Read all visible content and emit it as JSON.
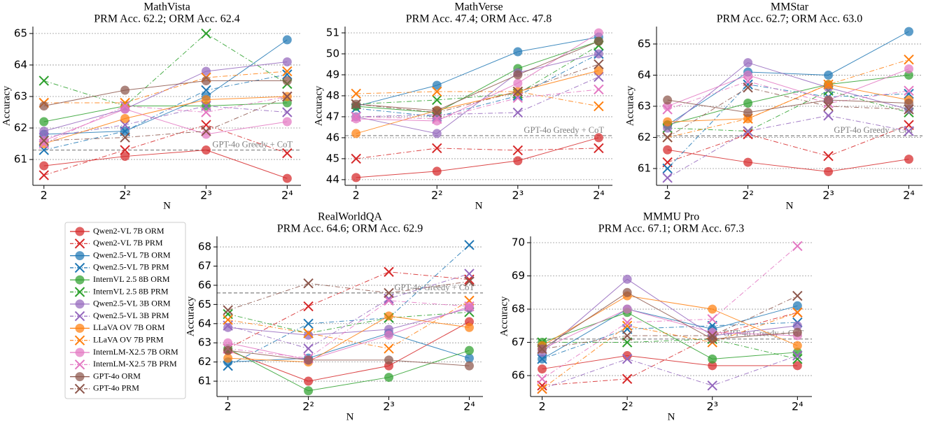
{
  "legend": [
    {
      "name": "Qwen2-VL 7B ORM",
      "color": "#d62728",
      "marker": "o",
      "linestyle": "solid"
    },
    {
      "name": "Qwen2-VL 7B PRM",
      "color": "#d62728",
      "marker": "x",
      "linestyle": "dashdot"
    },
    {
      "name": "Qwen2.5-VL 7B ORM",
      "color": "#1f77b4",
      "marker": "o",
      "linestyle": "solid"
    },
    {
      "name": "Qwen2.5-VL 7B PRM",
      "color": "#1f77b4",
      "marker": "x",
      "linestyle": "dashdot"
    },
    {
      "name": "InternVL 2.5 8B ORM",
      "color": "#2ca02c",
      "marker": "o",
      "linestyle": "solid"
    },
    {
      "name": "InternVL 2.5 8B PRM",
      "color": "#2ca02c",
      "marker": "x",
      "linestyle": "dashdot"
    },
    {
      "name": "Qwen2.5-VL 3B ORM",
      "color": "#9467bd",
      "marker": "o",
      "linestyle": "solid"
    },
    {
      "name": "Qwen2.5-VL 3B PRM",
      "color": "#9467bd",
      "marker": "x",
      "linestyle": "dashdot"
    },
    {
      "name": "LLaVA OV 7B ORM",
      "color": "#ff7f0e",
      "marker": "o",
      "linestyle": "solid"
    },
    {
      "name": "LLaVA OV 7B PRM",
      "color": "#ff7f0e",
      "marker": "x",
      "linestyle": "dashdot"
    },
    {
      "name": "InternLM-X2.5 7B ORM",
      "color": "#e377c2",
      "marker": "o",
      "linestyle": "solid"
    },
    {
      "name": "InternLM-X2.5 7B PRM",
      "color": "#e377c2",
      "marker": "x",
      "linestyle": "dashdot"
    },
    {
      "name": "GPT-4o ORM",
      "color": "#8c564b",
      "marker": "o",
      "linestyle": "solid"
    },
    {
      "name": "GPT-4o PRM",
      "color": "#8c564b",
      "marker": "x",
      "linestyle": "dashdot"
    }
  ],
  "chart_data": [
    {
      "type": "line",
      "title": "MathVista",
      "subtitle": "PRM Acc. 62.2; ORM Acc. 62.4",
      "xlabel": "N",
      "ylabel": "Accuracy",
      "x": [
        2,
        4,
        8,
        16
      ],
      "xscale": "log2",
      "xlim": [
        1.82,
        18
      ],
      "xticks": [
        2,
        {
          "value": 4,
          "label": "2²"
        },
        {
          "value": 8,
          "label": "2³"
        },
        {
          "value": 16,
          "label": "2⁴"
        }
      ],
      "ylim": [
        60.18,
        65.22
      ],
      "yticks": [
        61,
        62,
        63,
        64,
        65
      ],
      "grid": true,
      "reference": {
        "value": 61.3,
        "label": "GPT-4o Greedy + CoT"
      },
      "series": [
        {
          "values": [
            60.8,
            61.1,
            61.3,
            60.4
          ]
        },
        {
          "values": [
            60.5,
            61.3,
            62.1,
            61.2
          ]
        },
        {
          "values": [
            61.8,
            61.9,
            63.0,
            64.8
          ]
        },
        {
          "values": [
            61.3,
            61.9,
            63.2,
            63.7
          ]
        },
        {
          "values": [
            62.2,
            62.7,
            62.7,
            62.8
          ]
        },
        {
          "values": [
            63.5,
            62.7,
            65.0,
            63.4
          ]
        },
        {
          "values": [
            61.9,
            62.6,
            63.8,
            64.1
          ]
        },
        {
          "values": [
            61.7,
            62.1,
            62.7,
            62.5
          ]
        },
        {
          "values": [
            61.5,
            62.3,
            62.9,
            63.0
          ]
        },
        {
          "values": [
            62.8,
            62.8,
            63.6,
            63.8
          ]
        },
        {
          "values": [
            61.6,
            62.6,
            61.8,
            62.2
          ]
        },
        {
          "values": [
            61.5,
            62.7,
            62.5,
            63.0
          ]
        },
        {
          "values": [
            62.7,
            63.2,
            63.5,
            63.5
          ]
        },
        {
          "values": [
            61.6,
            61.7,
            61.9,
            63.0
          ]
        }
      ]
    },
    {
      "type": "line",
      "title": "MathVerse",
      "subtitle": "PRM Acc. 47.4; ORM Acc. 47.8",
      "xlabel": "N",
      "ylabel": "Accuracy",
      "x": [
        2,
        4,
        8,
        16
      ],
      "xscale": "log2",
      "xlim": [
        1.82,
        18
      ],
      "xticks": [
        2,
        {
          "value": 4,
          "label": "2²"
        },
        {
          "value": 8,
          "label": "2³"
        },
        {
          "value": 16,
          "label": "2⁴"
        }
      ],
      "ylim": [
        43.73,
        51.3
      ],
      "yticks": [
        44,
        45,
        46,
        47,
        48,
        49,
        50,
        51
      ],
      "grid": true,
      "reference": {
        "value": 46.1,
        "label": "GPT-4o Greedy + CoT"
      },
      "series": [
        {
          "values": [
            44.1,
            44.4,
            44.9,
            46.0
          ]
        },
        {
          "values": [
            45.0,
            45.5,
            45.4,
            45.5
          ]
        },
        {
          "values": [
            47.5,
            48.5,
            50.1,
            50.8
          ]
        },
        {
          "values": [
            47.4,
            47.0,
            48.0,
            50.0
          ]
        },
        {
          "values": [
            47.5,
            47.2,
            49.3,
            50.6
          ]
        },
        {
          "values": [
            47.6,
            47.8,
            48.1,
            50.4
          ]
        },
        {
          "values": [
            47.0,
            46.2,
            49.1,
            50.0
          ]
        },
        {
          "values": [
            47.0,
            47.1,
            47.2,
            48.9
          ]
        },
        {
          "values": [
            46.2,
            47.3,
            48.2,
            49.2
          ]
        },
        {
          "values": [
            48.1,
            48.2,
            48.2,
            47.5
          ]
        },
        {
          "values": [
            46.9,
            46.8,
            48.6,
            51.0
          ]
        },
        {
          "values": [
            47.0,
            46.9,
            47.9,
            48.3
          ]
        },
        {
          "values": [
            47.6,
            47.3,
            49.0,
            50.6
          ]
        },
        {
          "values": [
            47.6,
            47.2,
            48.2,
            49.5
          ]
        }
      ]
    },
    {
      "type": "line",
      "title": "MMStar",
      "subtitle": "PRM Acc. 62.7; ORM Acc. 63.0",
      "xlabel": "N",
      "ylabel": "Accuracy",
      "x": [
        2,
        4,
        8,
        16
      ],
      "xscale": "log2",
      "xlim": [
        1.82,
        18
      ],
      "xticks": [
        2,
        {
          "value": 4,
          "label": "2²"
        },
        {
          "value": 8,
          "label": "2³"
        },
        {
          "value": 16,
          "label": "2⁴"
        }
      ],
      "ylim": [
        60.46,
        65.56
      ],
      "yticks": [
        61,
        62,
        63,
        64,
        65
      ],
      "grid": true,
      "reference": {
        "value": 62.05,
        "label": "GPT-4o Greedy + CoT"
      },
      "series": [
        {
          "values": [
            61.6,
            61.2,
            60.9,
            61.3
          ]
        },
        {
          "values": [
            61.2,
            62.1,
            61.4,
            62.4
          ]
        },
        {
          "values": [
            62.4,
            64.1,
            64.0,
            65.4
          ]
        },
        {
          "values": [
            61.0,
            63.7,
            63.3,
            63.4
          ]
        },
        {
          "values": [
            62.4,
            63.1,
            63.7,
            64.0
          ]
        },
        {
          "values": [
            62.3,
            62.2,
            63.5,
            62.8
          ]
        },
        {
          "values": [
            62.3,
            64.4,
            63.6,
            62.9
          ]
        },
        {
          "values": [
            60.7,
            62.2,
            62.7,
            62.2
          ]
        },
        {
          "values": [
            62.5,
            62.6,
            63.7,
            63.2
          ]
        },
        {
          "values": [
            62.0,
            62.6,
            63.7,
            64.5
          ]
        },
        {
          "values": [
            63.0,
            64.0,
            63.2,
            64.2
          ]
        },
        {
          "values": [
            62.9,
            63.8,
            63.1,
            63.5
          ]
        },
        {
          "values": [
            63.2,
            62.8,
            63.2,
            63.1
          ]
        },
        {
          "values": [
            62.0,
            63.6,
            63.0,
            62.9
          ]
        }
      ]
    },
    {
      "type": "line",
      "title": "RealWorldQA",
      "subtitle": "PRM Acc. 64.6; ORM Acc. 62.9",
      "xlabel": "N",
      "ylabel": "Accuracy",
      "x": [
        2,
        4,
        8,
        16
      ],
      "xscale": "log2",
      "xlim": [
        1.82,
        18
      ],
      "xticks": [
        2,
        {
          "value": 4,
          "label": "2²"
        },
        {
          "value": 8,
          "label": "2³"
        },
        {
          "value": 16,
          "label": "2⁴"
        }
      ],
      "ylim": [
        60.2,
        68.55
      ],
      "yticks": [
        61,
        62,
        63,
        64,
        65,
        66,
        67,
        68
      ],
      "grid": true,
      "reference": {
        "value": 65.6,
        "label": "GPT-4o Greedy + CoT"
      },
      "series": [
        {
          "values": [
            62.6,
            61.0,
            61.8,
            64.1
          ]
        },
        {
          "values": [
            62.7,
            64.9,
            66.7,
            66.3
          ]
        },
        {
          "values": [
            62.0,
            62.2,
            63.5,
            62.2
          ]
        },
        {
          "values": [
            61.8,
            64.0,
            64.3,
            68.1
          ]
        },
        {
          "values": [
            62.7,
            60.5,
            61.2,
            62.6
          ]
        },
        {
          "values": [
            64.5,
            63.5,
            64.3,
            64.6
          ]
        },
        {
          "values": [
            63.8,
            63.4,
            63.7,
            64.8
          ]
        },
        {
          "values": [
            63.9,
            62.7,
            65.3,
            66.6
          ]
        },
        {
          "values": [
            62.2,
            62.0,
            64.4,
            63.8
          ]
        },
        {
          "values": [
            64.2,
            63.5,
            62.7,
            65.2
          ]
        },
        {
          "values": [
            63.0,
            62.1,
            63.4,
            64.9
          ]
        },
        {
          "values": [
            62.7,
            62.2,
            65.2,
            64.9
          ]
        },
        {
          "values": [
            62.6,
            62.1,
            62.1,
            61.8
          ]
        },
        {
          "values": [
            64.7,
            66.1,
            65.6,
            66.2
          ]
        }
      ]
    },
    {
      "type": "line",
      "title": "MMMU Pro",
      "subtitle": "PRM Acc. 67.1; ORM Acc. 67.3",
      "xlabel": "N",
      "ylabel": "Accuracy",
      "x": [
        2,
        4,
        8,
        16
      ],
      "xscale": "log2",
      "xlim": [
        1.82,
        18
      ],
      "xticks": [
        2,
        {
          "value": 4,
          "label": "2²"
        },
        {
          "value": 8,
          "label": "2³"
        },
        {
          "value": 16,
          "label": "2⁴"
        }
      ],
      "ylim": [
        65.37,
        70.19
      ],
      "yticks": [
        66,
        67,
        68,
        69,
        70
      ],
      "grid": true,
      "reference": {
        "value": 67.1,
        "label": "GPT-4o Greedy + CoT"
      },
      "series": [
        {
          "values": [
            66.2,
            66.6,
            66.3,
            66.3
          ]
        },
        {
          "values": [
            65.7,
            65.9,
            67.2,
            67.9
          ]
        },
        {
          "values": [
            66.5,
            68.0,
            67.4,
            68.1
          ]
        },
        {
          "values": [
            66.5,
            67.4,
            67.5,
            67.6
          ]
        },
        {
          "values": [
            67.0,
            67.9,
            66.5,
            66.7
          ]
        },
        {
          "values": [
            67.0,
            67.0,
            67.1,
            66.5
          ]
        },
        {
          "values": [
            66.7,
            68.9,
            67.2,
            67.5
          ]
        },
        {
          "values": [
            65.6,
            66.5,
            65.7,
            66.6
          ]
        },
        {
          "values": [
            66.9,
            68.4,
            68.0,
            66.9
          ]
        },
        {
          "values": [
            65.6,
            67.5,
            67.0,
            67.9
          ]
        },
        {
          "values": [
            66.8,
            68.0,
            67.3,
            67.2
          ]
        },
        {
          "values": [
            65.9,
            67.6,
            67.7,
            69.9
          ]
        },
        {
          "values": [
            66.8,
            68.5,
            67.1,
            67.3
          ]
        },
        {
          "values": [
            66.8,
            67.2,
            67.2,
            68.4
          ]
        }
      ]
    }
  ]
}
